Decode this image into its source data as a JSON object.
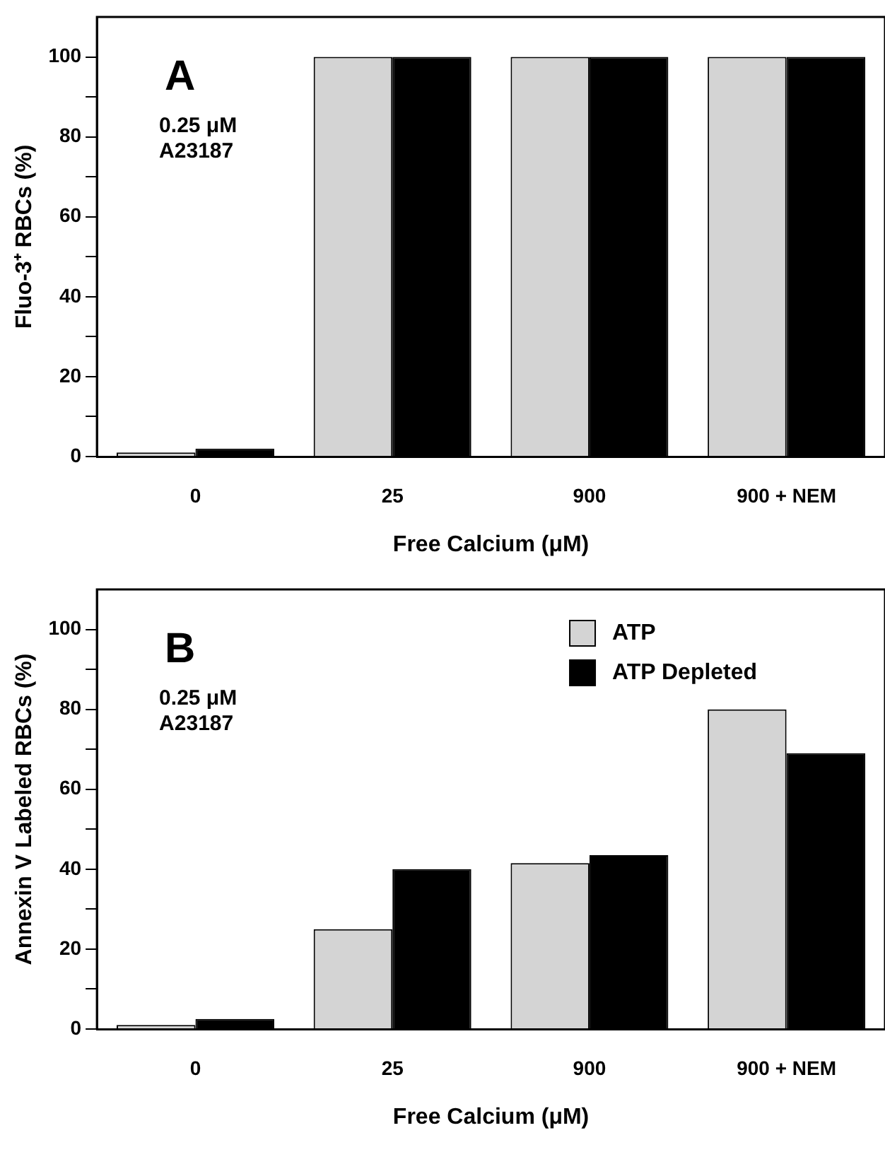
{
  "chart_data": [
    {
      "type": "bar",
      "xlabel": "Free Calcium (μM)",
      "ylabel": "Fluo-3⁺ RBCs (%)",
      "annotations": [
        "A",
        "0.25 μM\nA23187"
      ],
      "categories": [
        "0",
        "25",
        "900",
        "900 + NEM"
      ],
      "series": [
        {
          "color": "#d4d4d4",
          "values": [
            1,
            100,
            100,
            100
          ]
        },
        {
          "color": "#000000",
          "values": [
            2,
            100,
            100,
            100
          ]
        }
      ],
      "ylim": [
        0,
        110
      ],
      "yticks": [
        0,
        {
          "value": 10,
          "label": null
        },
        20,
        {
          "value": 30,
          "label": null
        },
        40,
        {
          "value": 50,
          "label": null
        },
        60,
        {
          "value": 70,
          "label": null
        },
        80,
        {
          "value": 90,
          "label": null
        },
        100
      ],
      "grid": false,
      "legend": false
    },
    {
      "type": "bar",
      "xlabel": "Free Calcium (μM)",
      "ylabel": "Annexin V Labeled RBCs (%)",
      "annotations": [
        "B",
        "0.25 μM\nA23187"
      ],
      "categories": [
        "0",
        "25",
        "900",
        "900 + NEM"
      ],
      "series": [
        {
          "name": "ATP",
          "color": "#d4d4d4",
          "values": [
            1,
            25,
            41.5,
            80
          ]
        },
        {
          "name": "ATP Depleted",
          "color": "#000000",
          "values": [
            2.5,
            40,
            43.5,
            69
          ]
        }
      ],
      "ylim": [
        0,
        110
      ],
      "yticks": [
        0,
        {
          "value": 10,
          "label": null
        },
        20,
        {
          "value": 30,
          "label": null
        },
        40,
        {
          "value": 50,
          "label": null
        },
        60,
        {
          "value": 70,
          "label": null
        },
        80,
        {
          "value": 90,
          "label": null
        },
        100
      ],
      "grid": false,
      "legend": "top right"
    }
  ]
}
